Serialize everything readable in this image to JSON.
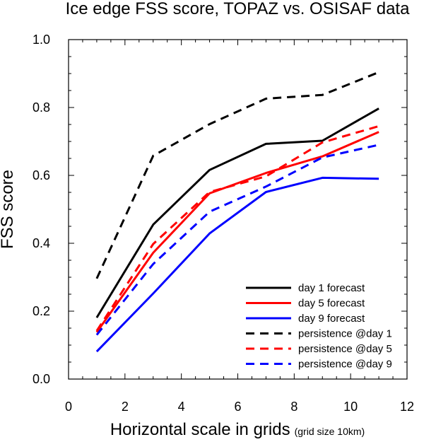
{
  "chart_data": {
    "type": "line",
    "title": "Ice edge FSS score, TOPAZ vs. OSISAF data",
    "xlabel": "Horizontal scale in grids",
    "xlabel_note": "(grid size 10km)",
    "ylabel": "FSS score",
    "xlim": [
      0,
      12
    ],
    "ylim": [
      0,
      1
    ],
    "xticks": [
      0,
      2,
      4,
      6,
      8,
      10,
      12
    ],
    "xtick_labels": [
      "0",
      "2",
      "4",
      "6",
      "8",
      "10",
      "12"
    ],
    "yticks": [
      0,
      0.2,
      0.4,
      0.6,
      0.8,
      1.0
    ],
    "ytick_labels": [
      "0.0",
      "0.2",
      "0.4",
      "0.6",
      "0.8",
      "1.0"
    ],
    "grid": false,
    "legend_position": "bottom-right",
    "x": [
      1,
      3,
      5,
      7,
      9,
      11
    ],
    "series": [
      {
        "name": "day 1 forecast",
        "color": "#000000",
        "dash": "solid",
        "values": [
          0.181,
          0.455,
          0.616,
          0.693,
          0.702,
          0.797
        ]
      },
      {
        "name": "day 5 forecast",
        "color": "#ff0000",
        "dash": "solid",
        "values": [
          0.138,
          0.372,
          0.547,
          0.607,
          0.656,
          0.728
        ]
      },
      {
        "name": "day 9 forecast",
        "color": "#0000ff",
        "dash": "solid",
        "values": [
          0.081,
          0.252,
          0.429,
          0.551,
          0.593,
          0.59
        ]
      },
      {
        "name": "persistence @day 1",
        "color": "#000000",
        "dash": "dashed",
        "values": [
          0.296,
          0.658,
          0.751,
          0.826,
          0.837,
          0.904
        ]
      },
      {
        "name": "persistence @day 5",
        "color": "#ff0000",
        "dash": "dashed",
        "values": [
          0.142,
          0.398,
          0.551,
          0.597,
          0.697,
          0.745
        ]
      },
      {
        "name": "persistence @day 9",
        "color": "#0000ff",
        "dash": "dashed",
        "values": [
          0.13,
          0.339,
          0.493,
          0.567,
          0.653,
          0.69
        ]
      }
    ]
  }
}
